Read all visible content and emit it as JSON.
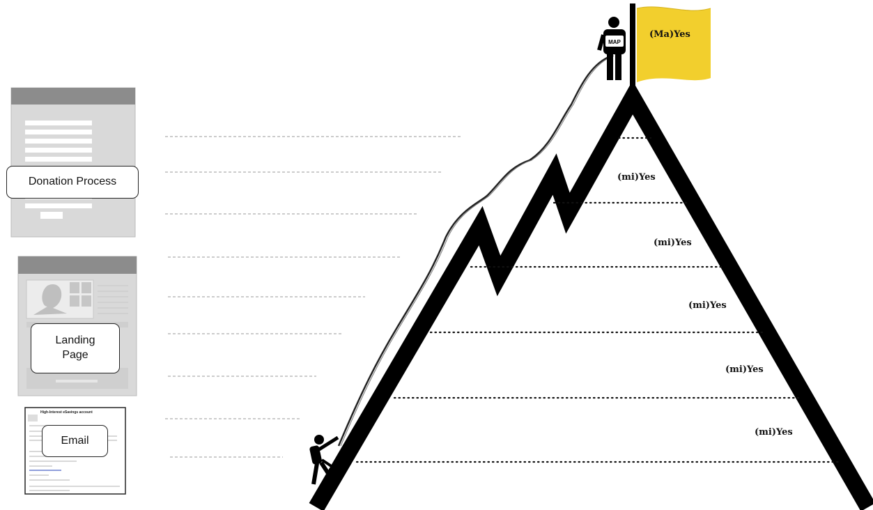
{
  "funnel": {
    "stages": [
      {
        "id": "donation",
        "label": "Donation Process"
      },
      {
        "id": "landing",
        "label": "Landing Page"
      },
      {
        "id": "email",
        "label": "Email"
      }
    ]
  },
  "mountain": {
    "summit_flag": "(Ma)Yes",
    "steps": [
      "(mi)Yes",
      "(mi)Yes",
      "(mi)Yes",
      "(mi)Yes",
      "(mi)Yes"
    ],
    "map_sign": "MAP"
  },
  "email_preview": {
    "subject": "High-Interest eSavings account"
  },
  "colors": {
    "flag": "#f2cf2d",
    "mountain": "#000000",
    "mockup_frame": "#8c8c8c",
    "mockup_body": "#d9d9d9"
  }
}
